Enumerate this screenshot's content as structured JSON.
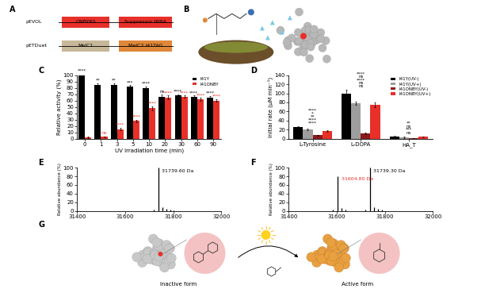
{
  "chart_data": [
    {
      "type": "bar",
      "title": "C",
      "x_label": "UV irradiation time (min)",
      "y_label": "Relative activity (%)",
      "categories": [
        "0",
        "1",
        "3",
        "5",
        "10",
        "20",
        "30",
        "60",
        "90"
      ],
      "ylim": [
        0,
        100
      ],
      "yticks": [
        0,
        10,
        20,
        30,
        40,
        50,
        60,
        70,
        80,
        90,
        100
      ],
      "legend": "upper right",
      "series": [
        {
          "name": "I41Y",
          "color": "#000000",
          "values": [
            100,
            85,
            85,
            82,
            80,
            66,
            68,
            66,
            65
          ],
          "errors": [
            2,
            2,
            2,
            2,
            2,
            3,
            2,
            2,
            2
          ],
          "annotations": [
            "****",
            "**",
            "**",
            "***",
            "****",
            "ns",
            "****",
            "****",
            "****"
          ]
        },
        {
          "name": "I41ONBY",
          "color": "#e8302a",
          "values": [
            2,
            3,
            15,
            28,
            48,
            65,
            66,
            62,
            60
          ],
          "errors": [
            1,
            1,
            2,
            2,
            3,
            3,
            2,
            2,
            2
          ],
          "annotations": [
            null,
            "ns",
            "****",
            "****",
            "****",
            "****",
            "****",
            "****",
            "****"
          ]
        }
      ]
    },
    {
      "type": "bar",
      "title": "D",
      "y_label": "Initial rate (μM min⁻¹)",
      "categories": [
        "L-Tyrosine",
        "L-DOPA",
        "HA_T"
      ],
      "ylim": [
        0,
        140
      ],
      "yticks": [
        0,
        20,
        40,
        60,
        80,
        100,
        120,
        140
      ],
      "legend": "upper right",
      "annotations": [
        [
          "****",
          "****",
          "**",
          "*",
          "****"
        ],
        [
          "ns",
          "ns",
          "****",
          "ns",
          "****"
        ],
        [
          "ns",
          "***",
          "ns",
          "**"
        ]
      ],
      "series": [
        {
          "name": "I41Y(UV-)",
          "color": "#000000",
          "values": [
            25,
            100,
            5
          ],
          "errors": [
            2,
            8,
            1
          ]
        },
        {
          "name": "I41Y(UV+)",
          "color": "#9e9e9e",
          "values": [
            20,
            78,
            3
          ],
          "errors": [
            2,
            4,
            1
          ]
        },
        {
          "name": "I41ONBY(UV-)",
          "color": "#8b1a1a",
          "values": [
            8,
            12,
            1
          ],
          "errors": [
            1,
            2,
            0.5
          ]
        },
        {
          "name": "I41ONBY(UV+)",
          "color": "#e8302a",
          "values": [
            17,
            75,
            4
          ],
          "errors": [
            2,
            5,
            1
          ]
        }
      ]
    },
    {
      "type": "stem",
      "title": "E",
      "y_label": "Relative abundance (%)",
      "color": "#000000",
      "x": [
        31720,
        31739.6,
        31755,
        31771,
        31787,
        31803
      ],
      "values": [
        3,
        100,
        8,
        5,
        3,
        2
      ],
      "xlim": [
        31400,
        32000
      ],
      "xticks": [
        31400,
        31600,
        31800,
        32000
      ],
      "ylim": [
        0,
        100
      ],
      "yticks": [
        0,
        20,
        40,
        60,
        80,
        100
      ],
      "annotations": [
        {
          "x": 31739.6,
          "y": 100,
          "text": "31739.60 Da",
          "color": "#000000"
        }
      ]
    },
    {
      "type": "stem",
      "title": "F",
      "y_label": "Relative abundance (%)",
      "color": "#000000",
      "x": [
        31585,
        31604.8,
        31620,
        31636,
        31720,
        31739.3,
        31755,
        31771,
        31787
      ],
      "values": [
        3,
        80,
        7,
        4,
        3,
        100,
        8,
        5,
        3
      ],
      "xlim": [
        31400,
        32000
      ],
      "xticks": [
        31400,
        31600,
        31800,
        32000
      ],
      "ylim": [
        0,
        100
      ],
      "yticks": [
        0,
        20,
        40,
        60,
        80,
        100
      ],
      "annotations": [
        {
          "x": 31604.8,
          "y": 80,
          "text": "31604.80 Da",
          "color": "#e8302a"
        },
        {
          "x": 31739.3,
          "y": 100,
          "text": "31739.30 Da",
          "color": "#000000"
        }
      ]
    }
  ],
  "panels": [
    {
      "label": "A",
      "rows": [
        {
          "plasmid": "pEVOL",
          "genes": [
            {
              "text": "ONBYRS",
              "color": "#e8302a"
            },
            {
              "text": "Suppressor tRNA",
              "color": "#e8302a"
            }
          ]
        },
        {
          "plasmid": "pETDuet",
          "genes": [
            {
              "text": "MelC1",
              "color": "#c8b89a"
            },
            {
              "text": "MelC2 I41TAG",
              "color": "#e0883a"
            }
          ]
        }
      ]
    },
    {
      "label": "B"
    },
    {
      "label": "G",
      "left": "Inactive form",
      "right": "Active form"
    }
  ]
}
